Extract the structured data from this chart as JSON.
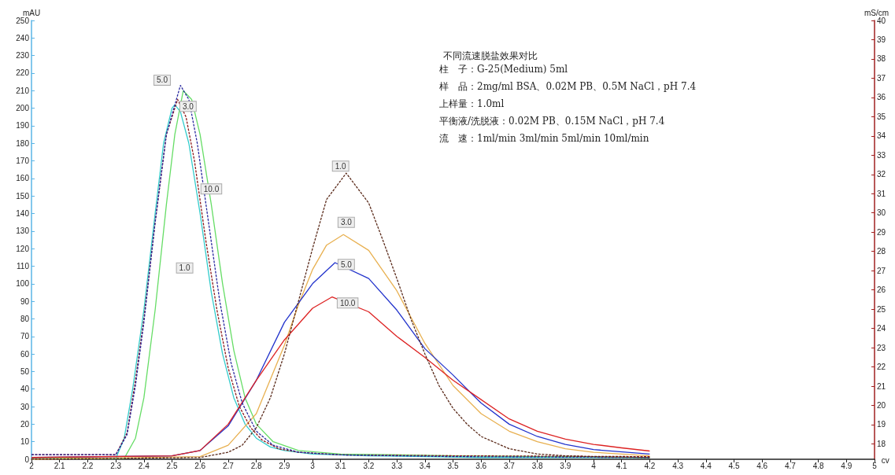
{
  "chart_data": {
    "type": "line",
    "title": "不同流速脱盐效果对比",
    "xlabel": "cv",
    "ylabel": "mAU",
    "y2label": "mS/cm",
    "xlim": [
      2,
      5
    ],
    "xticks": [
      2,
      2.1,
      2.2,
      2.3,
      2.4,
      2.5,
      2.6,
      2.7,
      2.8,
      2.9,
      3,
      3.1,
      3.2,
      3.3,
      3.4,
      3.5,
      3.6,
      3.7,
      3.8,
      3.9,
      4,
      4.1,
      4.2,
      4.3,
      4.4,
      4.5,
      4.6,
      4.7,
      4.8,
      4.9,
      5
    ],
    "ylim": [
      0,
      250
    ],
    "yticks": [
      0,
      10,
      20,
      30,
      40,
      50,
      60,
      70,
      80,
      90,
      100,
      110,
      120,
      130,
      140,
      150,
      160,
      170,
      180,
      190,
      200,
      210,
      220,
      230,
      240,
      250
    ],
    "y2lim": [
      17.2,
      40
    ],
    "y2ticks": [
      18,
      19,
      20,
      21,
      22,
      23,
      24,
      25,
      26,
      27,
      28,
      29,
      30,
      31,
      32,
      33,
      34,
      35,
      36,
      37,
      38,
      39,
      40
    ],
    "marker": "none",
    "grid": false,
    "series": [
      {
        "color": "#33cccc",
        "line_style": "solid",
        "x": [
          2,
          2.3,
          2.33,
          2.36,
          2.4,
          2.44,
          2.47,
          2.5,
          2.51,
          2.53,
          2.56,
          2.6,
          2.64,
          2.68,
          2.72,
          2.76,
          2.8,
          2.85,
          2.9,
          3.0,
          3.2,
          3.6,
          4.2
        ],
        "values": [
          0.5,
          0.5,
          12,
          40,
          85,
          140,
          180,
          200,
          202,
          198,
          180,
          140,
          95,
          60,
          35,
          20,
          12,
          7,
          5,
          3,
          2,
          1,
          1
        ]
      },
      {
        "color": "#8b1a1a",
        "line_style": "dashed",
        "x": [
          2,
          2.3,
          2.34,
          2.37,
          2.4,
          2.44,
          2.48,
          2.52,
          2.55,
          2.58,
          2.62,
          2.66,
          2.7,
          2.74,
          2.78,
          2.82,
          2.88,
          2.95,
          3.1,
          3.5,
          4.2
        ],
        "values": [
          2.6,
          2.6,
          15,
          45,
          80,
          135,
          185,
          205,
          195,
          170,
          125,
          85,
          52,
          30,
          18,
          11,
          6,
          4,
          2.5,
          2,
          1.5
        ]
      },
      {
        "color": "#2a2aa0",
        "line_style": "dashed",
        "x": [
          2,
          2.3,
          2.34,
          2.37,
          2.4,
          2.44,
          2.48,
          2.53,
          2.56,
          2.59,
          2.63,
          2.67,
          2.71,
          2.75,
          2.8,
          2.86,
          2.95,
          3.1,
          3.5,
          4.2
        ],
        "values": [
          2.6,
          2.6,
          14,
          42,
          78,
          135,
          185,
          213,
          205,
          180,
          135,
          90,
          55,
          32,
          16,
          8,
          4,
          2.5,
          1.5,
          1
        ]
      },
      {
        "color": "#66dd66",
        "line_style": "solid",
        "x": [
          2,
          2.33,
          2.37,
          2.4,
          2.44,
          2.48,
          2.51,
          2.54,
          2.57,
          2.6,
          2.64,
          2.68,
          2.72,
          2.76,
          2.8,
          2.86,
          2.95,
          3.1,
          3.5,
          4.2
        ],
        "values": [
          0.5,
          0.5,
          12,
          35,
          85,
          145,
          185,
          210,
          205,
          185,
          145,
          100,
          62,
          35,
          20,
          10,
          5,
          3,
          2,
          1
        ]
      },
      {
        "color": "#5a2a1a",
        "line_style": "dashed",
        "x": [
          2,
          2.6,
          2.7,
          2.75,
          2.8,
          2.85,
          2.9,
          2.95,
          3.0,
          3.05,
          3.12,
          3.2,
          3.25,
          3.3,
          3.35,
          3.4,
          3.45,
          3.5,
          3.55,
          3.6,
          3.7,
          3.8,
          3.9,
          4.0,
          4.2
        ],
        "values": [
          0,
          1,
          4,
          8,
          18,
          35,
          60,
          90,
          120,
          148,
          163,
          146,
          125,
          103,
          80,
          60,
          42,
          29,
          20,
          13,
          6,
          3,
          2,
          1.5,
          1
        ]
      },
      {
        "color": "#e8b050",
        "line_style": "solid",
        "x": [
          2,
          2.6,
          2.7,
          2.8,
          2.9,
          2.95,
          3.0,
          3.05,
          3.11,
          3.2,
          3.3,
          3.4,
          3.5,
          3.6,
          3.7,
          3.8,
          3.9,
          4.0,
          4.1,
          4.2
        ],
        "values": [
          0,
          1.5,
          8,
          26,
          65,
          88,
          108,
          122,
          128,
          119,
          96,
          66,
          42,
          26,
          16,
          10,
          6,
          4,
          3,
          2
        ]
      },
      {
        "color": "#2233cc",
        "line_style": "solid",
        "x": [
          2,
          2.5,
          2.6,
          2.7,
          2.8,
          2.9,
          3.0,
          3.08,
          3.2,
          3.3,
          3.4,
          3.5,
          3.6,
          3.7,
          3.8,
          3.9,
          4.0,
          4.2
        ],
        "values": [
          1,
          2,
          5,
          19,
          45,
          78,
          100,
          112,
          103,
          85,
          63,
          48,
          32,
          20,
          13,
          8.5,
          5.5,
          3
        ]
      },
      {
        "color": "#dd2222",
        "line_style": "solid",
        "x": [
          2,
          2.5,
          2.6,
          2.7,
          2.8,
          2.9,
          3.0,
          3.07,
          3.2,
          3.3,
          3.4,
          3.5,
          3.6,
          3.7,
          3.8,
          3.9,
          4.0,
          4.1,
          4.2
        ],
        "values": [
          1,
          2,
          5,
          20,
          45,
          68,
          86,
          92.5,
          84,
          70,
          58,
          45,
          34,
          23,
          16,
          11.5,
          8.5,
          6.5,
          4.7
        ]
      }
    ],
    "annotations": [
      "柱　子：G-25(Medium) 5ml",
      "样　品：2mg/ml BSA、0.02M PB、0.5M NaCl，pH 7.4",
      "上样量：1.0ml",
      "平衡液/洗脱液：0.02M PB、0.15M NaCl，pH 7.4",
      "流　速：1ml/min 3ml/min 5ml/min 10ml/min",
      {
        "text": "5.0",
        "x": 2.465,
        "y": 216
      },
      {
        "text": "3.0",
        "x": 2.557,
        "y": 201
      },
      {
        "text": "10.0",
        "x": 2.64,
        "y": 154
      },
      {
        "text": "1.0",
        "x": 2.545,
        "y": 109
      },
      {
        "text": "1.0",
        "x": 3.1,
        "y": 167
      },
      {
        "text": "3.0",
        "x": 3.12,
        "y": 135
      },
      {
        "text": "5.0",
        "x": 3.12,
        "y": 111
      },
      {
        "text": "10.0",
        "x": 3.125,
        "y": 89
      }
    ]
  }
}
